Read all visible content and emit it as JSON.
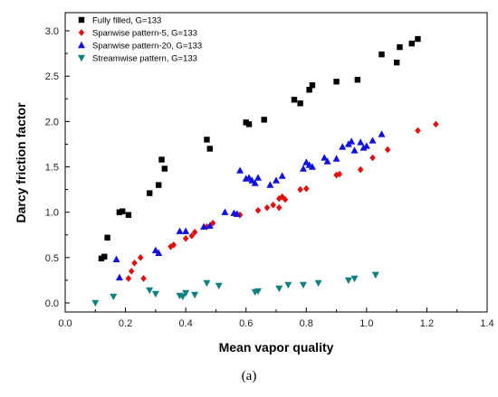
{
  "chart_data": {
    "type": "scatter",
    "xlabel": "Mean vapor quality",
    "ylabel": "Darcy friction factor",
    "xlim": [
      0.0,
      1.4
    ],
    "ylim": [
      -0.1,
      3.2
    ],
    "x_ticks": [
      0.0,
      0.2,
      0.4,
      0.6,
      0.8,
      1.0,
      1.2,
      1.4
    ],
    "y_ticks": [
      0.0,
      0.5,
      1.0,
      1.5,
      2.0,
      2.5,
      3.0
    ],
    "grid": false,
    "legend_position": "top-left",
    "series": [
      {
        "name": "Fully filled, G=133",
        "marker": "square",
        "color": "#000000",
        "points": [
          [
            0.12,
            0.49
          ],
          [
            0.13,
            0.51
          ],
          [
            0.14,
            0.72
          ],
          [
            0.18,
            1.0
          ],
          [
            0.19,
            1.01
          ],
          [
            0.21,
            0.97
          ],
          [
            0.28,
            1.21
          ],
          [
            0.31,
            1.3
          ],
          [
            0.32,
            1.58
          ],
          [
            0.33,
            1.48
          ],
          [
            0.47,
            1.8
          ],
          [
            0.48,
            1.7
          ],
          [
            0.6,
            1.99
          ],
          [
            0.61,
            1.97
          ],
          [
            0.66,
            2.02
          ],
          [
            0.76,
            2.24
          ],
          [
            0.78,
            2.2
          ],
          [
            0.81,
            2.35
          ],
          [
            0.82,
            2.4
          ],
          [
            0.9,
            2.44
          ],
          [
            0.97,
            2.46
          ],
          [
            1.05,
            2.74
          ],
          [
            1.1,
            2.65
          ],
          [
            1.11,
            2.82
          ],
          [
            1.15,
            2.86
          ],
          [
            1.17,
            2.91
          ]
        ]
      },
      {
        "name": "Spanwise pattern-5, G=133",
        "marker": "diamond",
        "color": "#e01010",
        "points": [
          [
            0.21,
            0.27
          ],
          [
            0.22,
            0.35
          ],
          [
            0.23,
            0.44
          ],
          [
            0.25,
            0.5
          ],
          [
            0.26,
            0.27
          ],
          [
            0.35,
            0.62
          ],
          [
            0.36,
            0.64
          ],
          [
            0.4,
            0.71
          ],
          [
            0.42,
            0.74
          ],
          [
            0.43,
            0.78
          ],
          [
            0.47,
            0.84
          ],
          [
            0.49,
            0.88
          ],
          [
            0.57,
            0.98
          ],
          [
            0.58,
            0.97
          ],
          [
            0.64,
            1.02
          ],
          [
            0.67,
            1.05
          ],
          [
            0.69,
            1.08
          ],
          [
            0.71,
            1.15
          ],
          [
            0.71,
            1.05
          ],
          [
            0.72,
            1.17
          ],
          [
            0.73,
            1.14
          ],
          [
            0.78,
            1.25
          ],
          [
            0.8,
            1.26
          ],
          [
            0.9,
            1.41
          ],
          [
            0.91,
            1.42
          ],
          [
            0.98,
            1.47
          ],
          [
            1.02,
            1.6
          ],
          [
            1.07,
            1.69
          ],
          [
            1.17,
            1.9
          ],
          [
            1.23,
            1.97
          ]
        ]
      },
      {
        "name": "Spanwise pattern-20, G=133",
        "marker": "triangle-up",
        "color": "#1010e0",
        "points": [
          [
            0.17,
            0.48
          ],
          [
            0.18,
            0.28
          ],
          [
            0.3,
            0.58
          ],
          [
            0.31,
            0.55
          ],
          [
            0.38,
            0.79
          ],
          [
            0.4,
            0.79
          ],
          [
            0.46,
            0.84
          ],
          [
            0.48,
            0.85
          ],
          [
            0.53,
            1.0
          ],
          [
            0.56,
            0.99
          ],
          [
            0.57,
            0.98
          ],
          [
            0.58,
            1.46
          ],
          [
            0.6,
            1.37
          ],
          [
            0.61,
            1.38
          ],
          [
            0.62,
            1.35
          ],
          [
            0.63,
            1.32
          ],
          [
            0.64,
            1.38
          ],
          [
            0.68,
            1.3
          ],
          [
            0.7,
            1.35
          ],
          [
            0.72,
            1.4
          ],
          [
            0.79,
            1.48
          ],
          [
            0.8,
            1.55
          ],
          [
            0.81,
            1.52
          ],
          [
            0.82,
            1.5
          ],
          [
            0.86,
            1.6
          ],
          [
            0.87,
            1.56
          ],
          [
            0.9,
            1.59
          ],
          [
            0.92,
            1.72
          ],
          [
            0.94,
            1.75
          ],
          [
            0.95,
            1.78
          ],
          [
            0.96,
            1.68
          ],
          [
            0.98,
            1.77
          ],
          [
            0.99,
            1.71
          ],
          [
            1.0,
            1.73
          ],
          [
            1.02,
            1.79
          ],
          [
            1.05,
            1.86
          ]
        ]
      },
      {
        "name": "Streamwise pattern, G=133",
        "marker": "triangle-down",
        "color": "#108080",
        "points": [
          [
            0.1,
            0.0
          ],
          [
            0.16,
            0.07
          ],
          [
            0.28,
            0.14
          ],
          [
            0.3,
            0.1
          ],
          [
            0.38,
            0.08
          ],
          [
            0.39,
            0.07
          ],
          [
            0.4,
            0.11
          ],
          [
            0.43,
            0.09
          ],
          [
            0.47,
            0.22
          ],
          [
            0.51,
            0.19
          ],
          [
            0.63,
            0.12
          ],
          [
            0.64,
            0.13
          ],
          [
            0.71,
            0.16
          ],
          [
            0.74,
            0.2
          ],
          [
            0.79,
            0.2
          ],
          [
            0.84,
            0.22
          ],
          [
            0.94,
            0.25
          ],
          [
            0.96,
            0.27
          ],
          [
            1.03,
            0.31
          ]
        ]
      }
    ]
  },
  "caption": "(a)"
}
